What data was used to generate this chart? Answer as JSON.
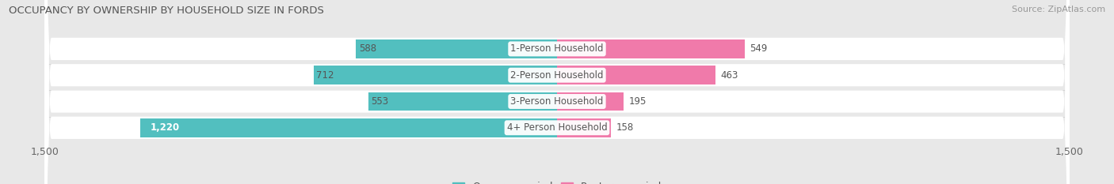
{
  "title": "OCCUPANCY BY OWNERSHIP BY HOUSEHOLD SIZE IN FORDS",
  "source": "Source: ZipAtlas.com",
  "categories": [
    "1-Person Household",
    "2-Person Household",
    "3-Person Household",
    "4+ Person Household"
  ],
  "owner_values": [
    588,
    712,
    553,
    1220
  ],
  "renter_values": [
    549,
    463,
    195,
    158
  ],
  "owner_color": "#52bfbf",
  "renter_color": "#f07aaa",
  "axis_max": 1500,
  "bg_color": "#e8e8e8",
  "bar_row_color": "#ffffff",
  "title_fontsize": 9.5,
  "source_fontsize": 8,
  "value_fontsize": 8.5,
  "cat_fontsize": 8.5,
  "tick_fontsize": 9,
  "legend_fontsize": 9,
  "owner_label_white_threshold": 800
}
